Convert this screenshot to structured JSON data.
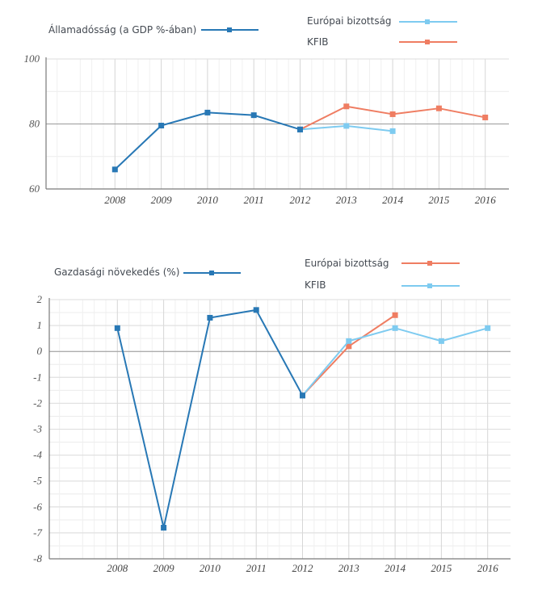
{
  "chart_data": [
    {
      "type": "line",
      "legend_title": "Államadósság (a GDP %-ában)",
      "x": [
        "2008",
        "2009",
        "2010",
        "2011",
        "2012",
        "2013",
        "2014",
        "2015",
        "2016"
      ],
      "ylim": [
        60,
        100
      ],
      "yticks": [
        60,
        80,
        100
      ],
      "grid": true,
      "series": [
        {
          "name": "",
          "color": "#2878b5",
          "points": [
            [
              2008,
              66
            ],
            [
              2009,
              79.5
            ],
            [
              2010,
              83.5
            ],
            [
              2011,
              82.7
            ],
            [
              2012,
              78.3
            ]
          ]
        },
        {
          "name": "Európai bizottság",
          "color": "#7ecbf0",
          "points": [
            [
              2012,
              78.3
            ],
            [
              2013,
              79.4
            ],
            [
              2014,
              77.8
            ]
          ]
        },
        {
          "name": "KFIB",
          "color": "#ef7d62",
          "points": [
            [
              2012,
              78.3
            ],
            [
              2013,
              85.4
            ],
            [
              2014,
              83
            ],
            [
              2015,
              84.8
            ],
            [
              2016,
              82
            ]
          ]
        }
      ]
    },
    {
      "type": "line",
      "legend_title": "Gazdasági növekedés (%)",
      "x": [
        "2008",
        "2009",
        "2010",
        "2011",
        "2012",
        "2013",
        "2014",
        "2015",
        "2016"
      ],
      "ylim": [
        -8,
        2
      ],
      "yticks": [
        2,
        1,
        0,
        -1,
        -2,
        -3,
        -4,
        -5,
        -6,
        -7,
        -8
      ],
      "grid": true,
      "series": [
        {
          "name": "",
          "color": "#2878b5",
          "points": [
            [
              2008,
              0.9
            ],
            [
              2009,
              -6.8
            ],
            [
              2010,
              1.3
            ],
            [
              2011,
              1.6
            ],
            [
              2012,
              -1.7
            ]
          ]
        },
        {
          "name": "Európai bizottság",
          "color": "#ef7d62",
          "points": [
            [
              2012,
              -1.7
            ],
            [
              2013,
              0.2
            ],
            [
              2014,
              1.4
            ]
          ]
        },
        {
          "name": "KFIB",
          "color": "#7ecbf0",
          "points": [
            [
              2012,
              -1.7
            ],
            [
              2013,
              0.4
            ],
            [
              2014,
              0.9
            ],
            [
              2015,
              0.4
            ],
            [
              2016,
              0.9
            ]
          ]
        }
      ]
    }
  ]
}
